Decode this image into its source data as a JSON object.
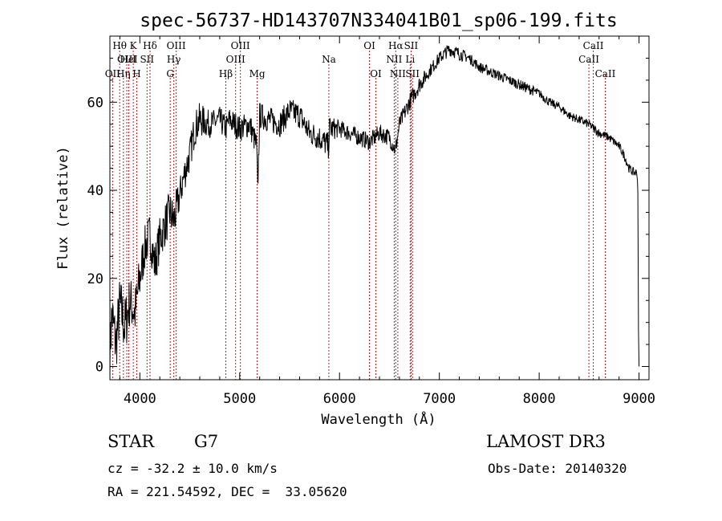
{
  "chart_data": {
    "type": "line",
    "title": "spec-56737-HD143707N334041B01_sp06-199.fits",
    "xlabel": "Wavelength (Å)",
    "ylabel": "Flux (relative)",
    "xlim": [
      3700,
      9100
    ],
    "ylim": [
      -3,
      75
    ],
    "xticks": [
      4000,
      5000,
      6000,
      7000,
      8000,
      9000
    ],
    "yticks": [
      0,
      20,
      40,
      60
    ],
    "grid": false,
    "spectrum_anchors": {
      "x": [
        3700,
        3720,
        3760,
        3800,
        3850,
        3900,
        3950,
        4000,
        4050,
        4100,
        4150,
        4200,
        4250,
        4300,
        4340,
        4400,
        4450,
        4500,
        4550,
        4600,
        4700,
        4800,
        4860,
        4900,
        4950,
        5000,
        5100,
        5170,
        5180,
        5200,
        5300,
        5400,
        5500,
        5600,
        5700,
        5800,
        5890,
        5900,
        6000,
        6100,
        6200,
        6300,
        6400,
        6500,
        6560,
        6600,
        6700,
        6800,
        6900,
        7000,
        7100,
        7200,
        7300,
        7400,
        7500,
        7600,
        7700,
        7800,
        7900,
        8000,
        8100,
        8200,
        8300,
        8400,
        8500,
        8600,
        8700,
        8800,
        8850,
        8900,
        8950,
        8980,
        9000
      ],
      "y": [
        3,
        12,
        5,
        14,
        9,
        15,
        12,
        20,
        27,
        30,
        23,
        29,
        32,
        35,
        33,
        39,
        44,
        48,
        54,
        56,
        55,
        56,
        54,
        56,
        55,
        54,
        55,
        50,
        40,
        57,
        56,
        55,
        58,
        57,
        53,
        52,
        50,
        54,
        54,
        53,
        52,
        51,
        53,
        52,
        49,
        55,
        60,
        64,
        67,
        70,
        72,
        71,
        70,
        68,
        67,
        66,
        65,
        64,
        63,
        62,
        60,
        59,
        57,
        56,
        55,
        53,
        52,
        50,
        48,
        45,
        44,
        44,
        34
      ],
      "noise": [
        6,
        7,
        7,
        7,
        7,
        6,
        6,
        6,
        5,
        5,
        5,
        5,
        5,
        5,
        5,
        4,
        4,
        4,
        4,
        4,
        3,
        3,
        3,
        3,
        3,
        3,
        3,
        3,
        3,
        3,
        3,
        3,
        3,
        3,
        3,
        3,
        3,
        3,
        2,
        2,
        2,
        2,
        2,
        2,
        2,
        2,
        2,
        2,
        1.5,
        1.5,
        1.5,
        1.5,
        1.2,
        1.2,
        1.2,
        1.2,
        1.2,
        1.2,
        1.2,
        1,
        1,
        1,
        1,
        1,
        1,
        1,
        1,
        1,
        1,
        1,
        1,
        1,
        1
      ]
    },
    "line_marks": [
      {
        "wavelength": 3727,
        "label": "OII",
        "row": 2
      },
      {
        "wavelength": 3798,
        "label": "Hθ",
        "row": 0
      },
      {
        "wavelength": 3835,
        "label": "Hη",
        "row": 2
      },
      {
        "wavelength": 3869,
        "label": "OIII",
        "row": 1
      },
      {
        "wavelength": 3889,
        "label": "HeI",
        "row": 1
      },
      {
        "wavelength": 3934,
        "label": "K",
        "row": 0
      },
      {
        "wavelength": 3969,
        "label": "H",
        "row": 2
      },
      {
        "wavelength": 4072,
        "label": "SII",
        "row": 1
      },
      {
        "wavelength": 4102,
        "label": "Hδ",
        "row": 0
      },
      {
        "wavelength": 4304,
        "label": "G",
        "row": 2
      },
      {
        "wavelength": 4340,
        "label": "Hγ",
        "row": 1
      },
      {
        "wavelength": 4364,
        "label": "OIII",
        "row": 0
      },
      {
        "wavelength": 4861,
        "label": "Hβ",
        "row": 2
      },
      {
        "wavelength": 4959,
        "label": "OIII",
        "row": 1
      },
      {
        "wavelength": 5007,
        "label": "OIII",
        "row": 0
      },
      {
        "wavelength": 5175,
        "label": "Mg",
        "row": 2
      },
      {
        "wavelength": 5893,
        "label": "Na",
        "row": 1
      },
      {
        "wavelength": 6300,
        "label": "OI",
        "row": 0
      },
      {
        "wavelength": 6364,
        "label": "OI",
        "row": 2
      },
      {
        "wavelength": 6548,
        "label": "NII",
        "row": 1
      },
      {
        "wavelength": 6563,
        "label": "Hα",
        "row": 0
      },
      {
        "wavelength": 6584,
        "label": "NII",
        "row": 2
      },
      {
        "wavelength": 6708,
        "label": "Li",
        "row": 1
      },
      {
        "wavelength": 6717,
        "label": "SII",
        "row": 0
      },
      {
        "wavelength": 6731,
        "label": "SII",
        "row": 2
      },
      {
        "wavelength": 8498,
        "label": "CaII",
        "row": 1
      },
      {
        "wavelength": 8542,
        "label": "CaII",
        "row": 0
      },
      {
        "wavelength": 8662,
        "label": "CaII",
        "row": 2
      }
    ],
    "line_color": "#b22222"
  },
  "info": {
    "class_label": "STAR",
    "subclass": "G7",
    "survey": "LAMOST DR3",
    "redshift": "cz = -32.2 ± 10.0 km/s",
    "obs_date": "Obs-Date: 20140320",
    "coords": "RA = 221.54592, DEC =  33.05620"
  }
}
